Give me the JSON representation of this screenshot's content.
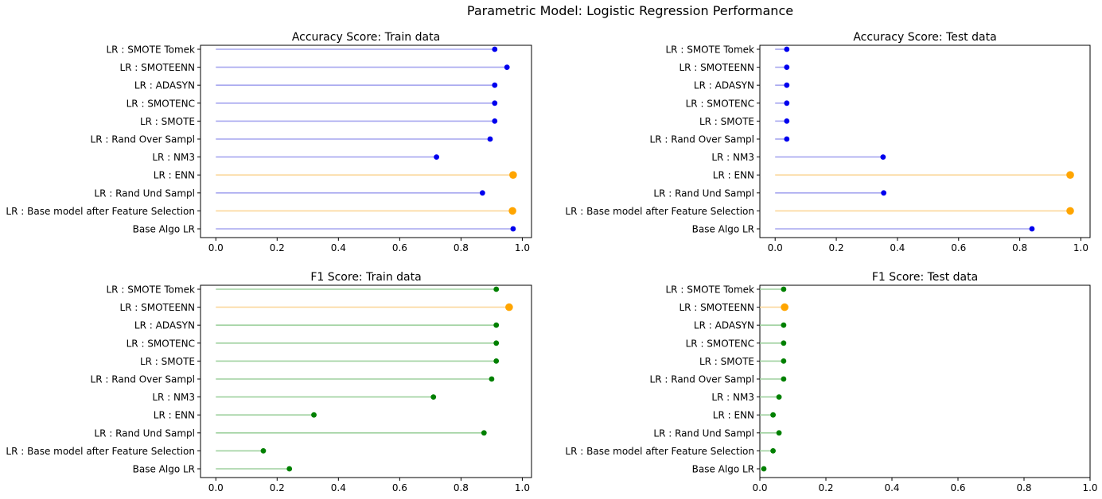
{
  "suptitle": "Parametric Model: Logistic Regression Performance",
  "colors": {
    "accuracy_line": "#a6a6ef",
    "accuracy_point": "#0000ee",
    "f1_line": "#9fd19f",
    "f1_point": "#008000",
    "highlight_line": "#fbd79a",
    "highlight_point": "#ffa500"
  },
  "chart_data": [
    {
      "type": "lollipop",
      "title": "Accuracy Score: Train data",
      "metric": "accuracy",
      "xlim": [
        0,
        1
      ],
      "xticks": [
        "0.0",
        "0.2",
        "0.4",
        "0.6",
        "0.8",
        "1.0"
      ],
      "categories": [
        "Base Algo LR",
        "LR : Base model after Feature Selection",
        "LR : Rand Und Sampl",
        "LR : ENN",
        "LR : NM3",
        "LR : Rand Over Sampl",
        "LR : SMOTE",
        "LR : SMOTENC",
        "LR : ADASYN",
        "LR : SMOTEENN",
        "LR : SMOTE Tomek"
      ],
      "values": [
        0.97,
        0.968,
        0.87,
        0.97,
        0.72,
        0.895,
        0.91,
        0.91,
        0.91,
        0.95,
        0.91
      ],
      "highlight": [
        false,
        true,
        false,
        true,
        false,
        false,
        false,
        false,
        false,
        false,
        false
      ]
    },
    {
      "type": "lollipop",
      "title": "Accuracy Score: Test data",
      "metric": "accuracy",
      "xlim": [
        0,
        1
      ],
      "xticks": [
        "0.0",
        "0.2",
        "0.4",
        "0.6",
        "0.8",
        "1.0"
      ],
      "categories": [
        "Base Algo LR",
        "LR : Base model after Feature Selection",
        "LR : Rand Und Sampl",
        "LR : ENN",
        "LR : NM3",
        "LR : Rand Over Sampl",
        "LR : SMOTE",
        "LR : SMOTENC",
        "LR : ADASYN",
        "LR : SMOTEENN",
        "LR : SMOTE Tomek"
      ],
      "values": [
        0.84,
        0.965,
        0.355,
        0.965,
        0.353,
        0.038,
        0.038,
        0.038,
        0.038,
        0.038,
        0.038
      ],
      "highlight": [
        false,
        true,
        false,
        true,
        false,
        false,
        false,
        false,
        false,
        false,
        false
      ]
    },
    {
      "type": "lollipop",
      "title": "F1 Score: Train data",
      "metric": "f1",
      "xlim": [
        0,
        1
      ],
      "xticks": [
        "0.0",
        "0.2",
        "0.4",
        "0.6",
        "0.8",
        "1.0"
      ],
      "categories": [
        "Base Algo LR",
        "LR : Base model after Feature Selection",
        "LR : Rand Und Sampl",
        "LR : ENN",
        "LR : NM3",
        "LR : Rand Over Sampl",
        "LR : SMOTE",
        "LR : SMOTENC",
        "LR : ADASYN",
        "LR : SMOTEENN",
        "LR : SMOTE Tomek"
      ],
      "values": [
        0.24,
        0.155,
        0.875,
        0.32,
        0.71,
        0.9,
        0.915,
        0.915,
        0.915,
        0.957,
        0.915
      ],
      "highlight": [
        false,
        false,
        false,
        false,
        false,
        false,
        false,
        false,
        false,
        true,
        false
      ]
    },
    {
      "type": "lollipop",
      "title": "F1 Score: Test data",
      "metric": "f1",
      "xlim": [
        0,
        1
      ],
      "xticks": [
        "0.0",
        "0.2",
        "0.4",
        "0.6",
        "0.8",
        "1.0"
      ],
      "categories": [
        "Base Algo LR",
        "LR : Base model after Feature Selection",
        "LR : Rand Und Sampl",
        "LR : ENN",
        "LR : NM3",
        "LR : Rand Over Sampl",
        "LR : SMOTE",
        "LR : SMOTENC",
        "LR : ADASYN",
        "LR : SMOTEENN",
        "LR : SMOTE Tomek"
      ],
      "values": [
        0.012,
        0.04,
        0.058,
        0.04,
        0.058,
        0.072,
        0.072,
        0.072,
        0.072,
        0.075,
        0.072
      ],
      "highlight": [
        false,
        false,
        false,
        false,
        false,
        false,
        false,
        false,
        false,
        true,
        false
      ]
    }
  ]
}
